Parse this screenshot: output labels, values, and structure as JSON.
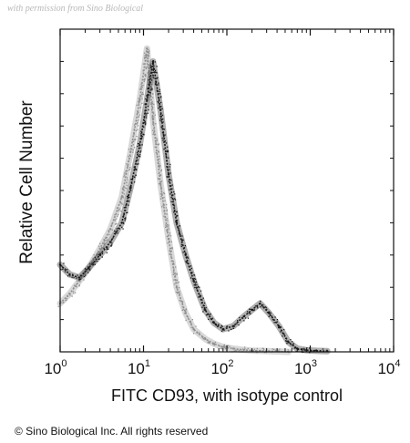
{
  "watermark": "with permission from Sino Biological",
  "copyright": "© Sino Biological Inc. All rights reserved",
  "chart_data": {
    "type": "area",
    "title": "",
    "xlabel": "FITC CD93, with isotype control",
    "ylabel": "Relative Cell Number",
    "x_scale": "log",
    "xlim": [
      1,
      10000
    ],
    "ylim": [
      0,
      100
    ],
    "x_ticks": [
      {
        "base": "10",
        "exp": "0",
        "value": 1
      },
      {
        "base": "10",
        "exp": "1",
        "value": 10
      },
      {
        "base": "10",
        "exp": "2",
        "value": 100
      },
      {
        "base": "10",
        "exp": "3",
        "value": 1000
      },
      {
        "base": "10",
        "exp": "4",
        "value": 10000
      }
    ],
    "grid": false,
    "legend": "none",
    "series": [
      {
        "role": "CD93",
        "color": "#1a1a1a",
        "x": [
          1,
          1.3,
          1.7,
          2.2,
          3,
          4,
          5.5,
          7,
          9,
          11,
          13,
          16,
          20,
          25,
          32,
          40,
          55,
          70,
          90,
          120,
          160,
          200,
          250,
          320,
          420,
          550,
          700,
          900,
          1200,
          1600
        ],
        "y": [
          27,
          24,
          23,
          26,
          30,
          34,
          40,
          51,
          64,
          78,
          90,
          75,
          55,
          40,
          30,
          22,
          13,
          9,
          7,
          8,
          11,
          13,
          15,
          12,
          8,
          3,
          1,
          0.5,
          0.3,
          0.2
        ]
      },
      {
        "role": "isotype control",
        "color": "#909090",
        "x": [
          1,
          1.3,
          1.7,
          2.2,
          3,
          4,
          5.5,
          7,
          9,
          11,
          13,
          16,
          20,
          25,
          32,
          40,
          55,
          70,
          90,
          120,
          160,
          200,
          250,
          320,
          420,
          550
        ],
        "y": [
          15,
          18,
          22,
          26,
          32,
          38,
          48,
          62,
          78,
          94,
          72,
          52,
          35,
          20,
          12,
          7,
          4,
          2.5,
          1.5,
          1,
          0.6,
          0.4,
          0.3,
          0.2,
          0.1,
          0
        ]
      }
    ]
  }
}
